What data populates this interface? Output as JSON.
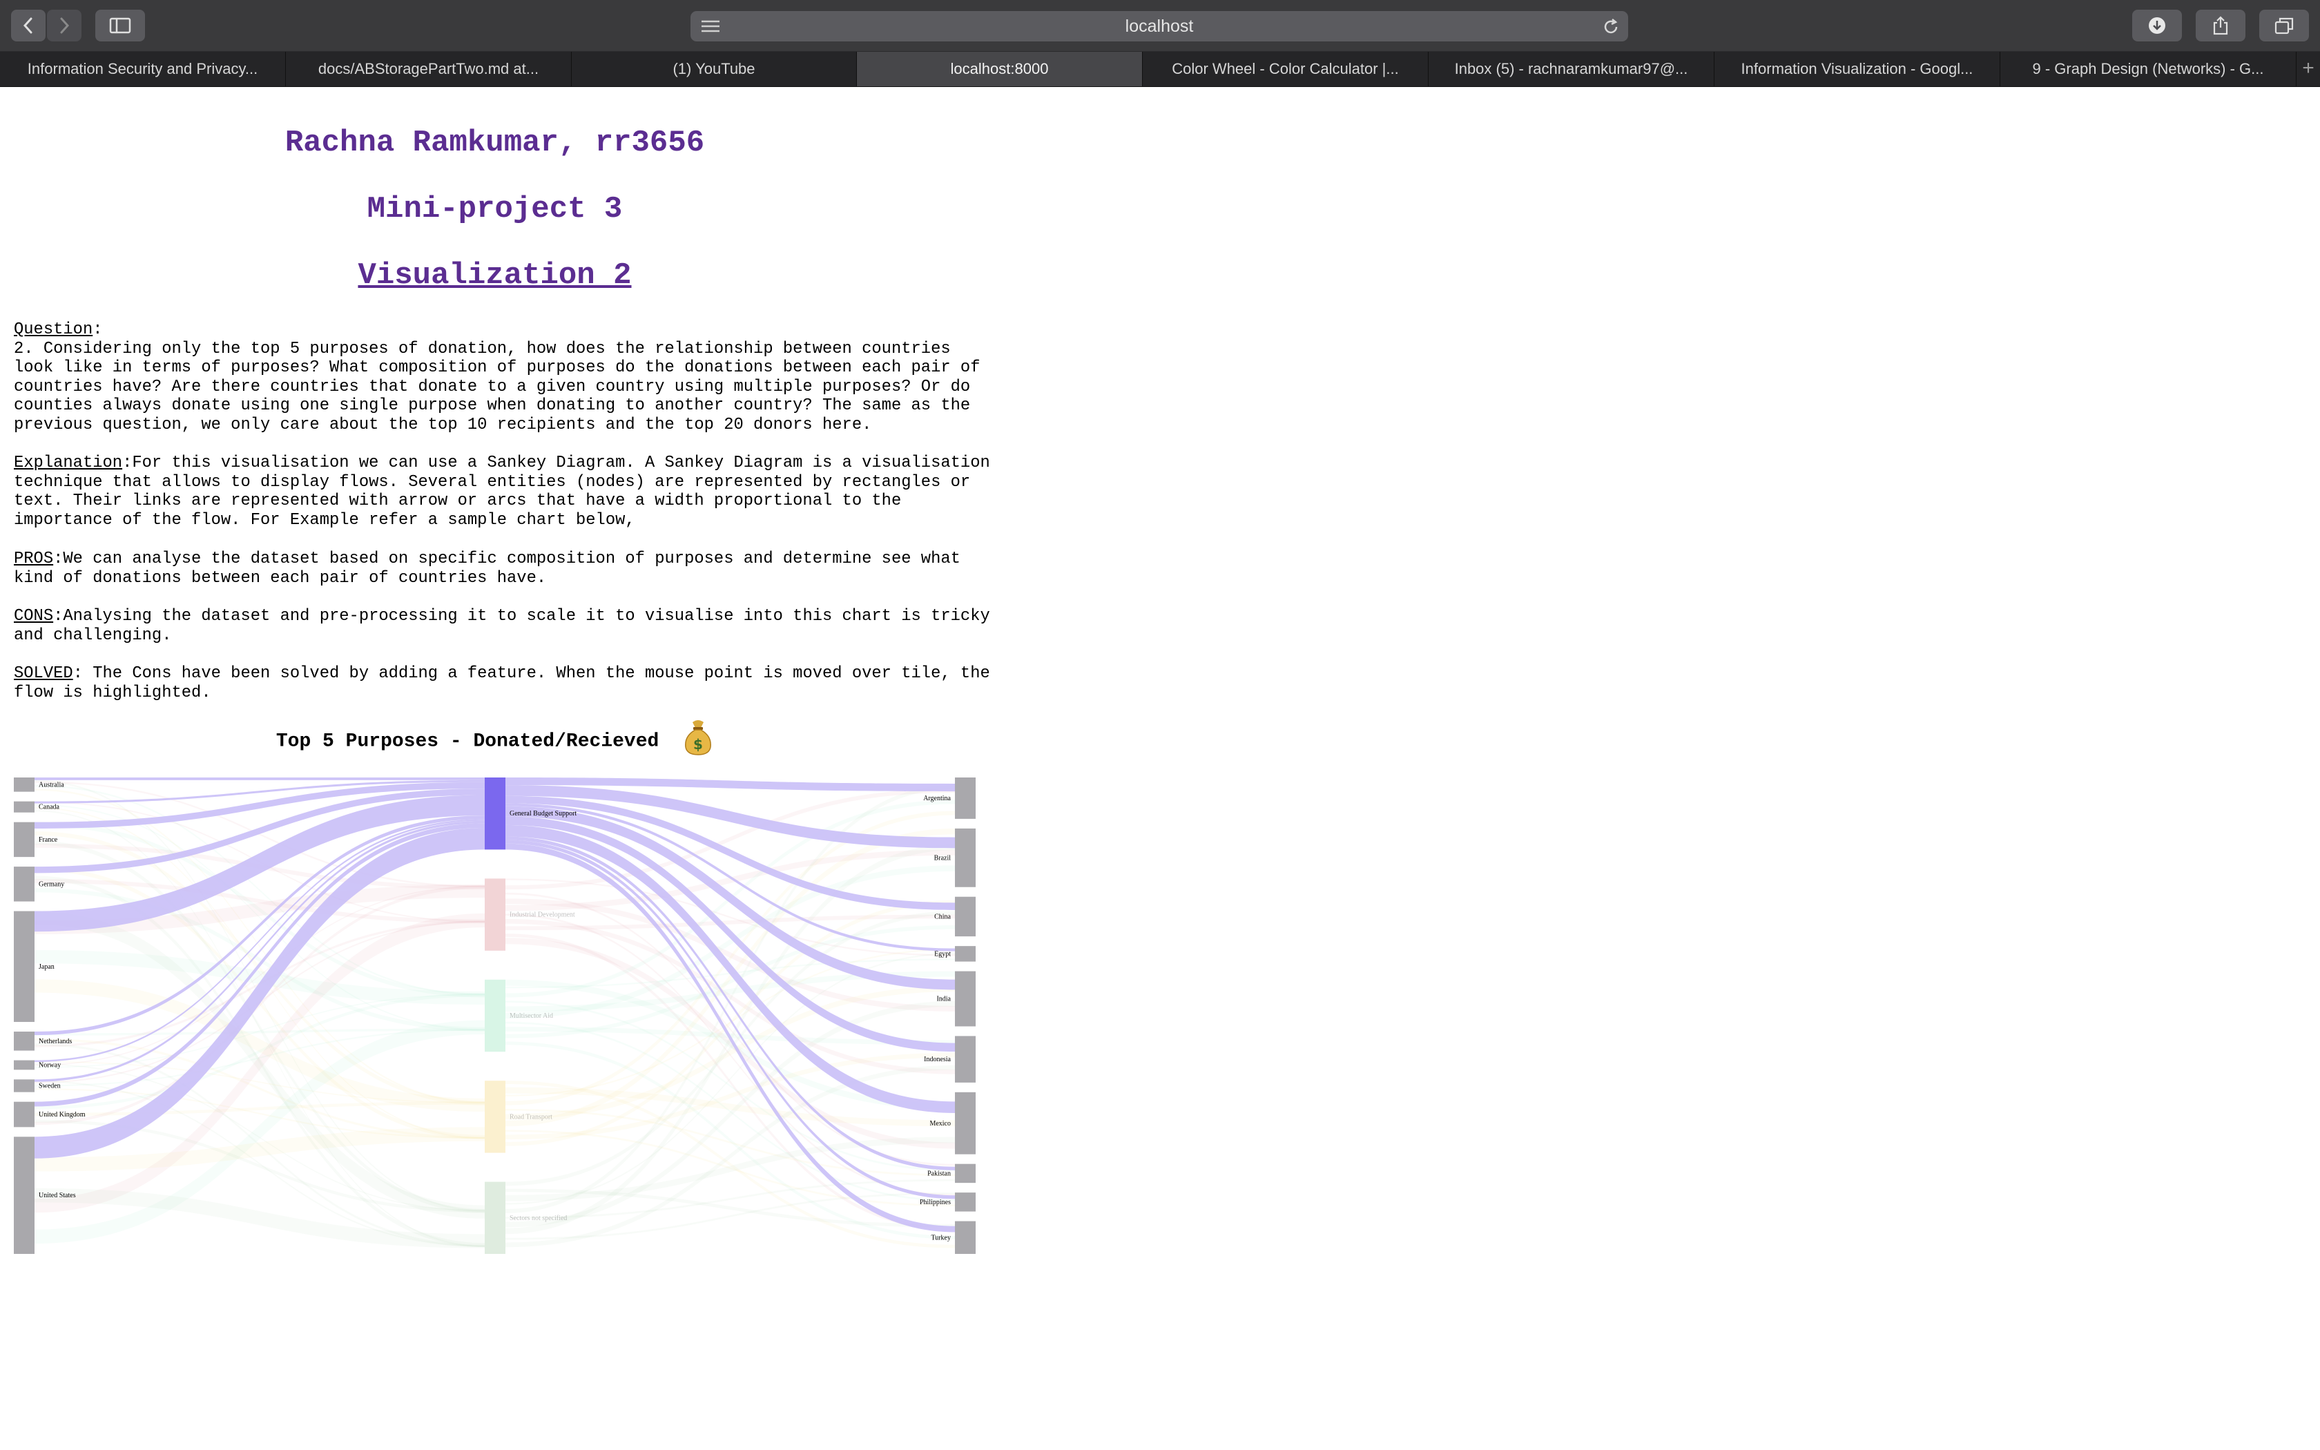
{
  "browser": {
    "address": "localhost",
    "tabs": [
      "Information Security and Privacy...",
      "docs/ABStoragePartTwo.md at...",
      "(1) YouTube",
      "localhost:8000",
      "Color Wheel - Color Calculator |...",
      "Inbox (5) - rachnaramkumar97@...",
      "Information Visualization - Googl...",
      "9 - Graph Design (Networks) - G..."
    ],
    "active_tab": 3,
    "add_tab": "+"
  },
  "page": {
    "author": "Rachna Ramkumar, rr3656",
    "project": "Mini-project 3",
    "viz_title": "Visualization 2",
    "question_label": "Question",
    "question_text": "2. Considering only the top 5 purposes of donation, how does the relationship between countries look like in terms of purposes? What composition of purposes do the donations between each pair of countries have? Are there countries that donate to a given country using multiple purposes? Or do counties always donate using one single purpose when donating to another country? The same as the previous question, we only care about the top 10 recipients and the top 20 donors here.",
    "explanation_label": "Explanation",
    "explanation_text": "For this visualisation we can use a Sankey Diagram. A Sankey Diagram is a visualisation technique that allows to display flows. Several entities (nodes) are represented by rectangles or text. Their links are represented with arrow or arcs that have a width proportional to the importance of the flow. For Example refer a sample chart below,",
    "pros_label": "PROS",
    "pros_text": "We can analyse the dataset based on specific composition of purposes and determine see what kind of donations between each pair of countries have.",
    "cons_label": "CONS",
    "cons_text": "Analysing the dataset and pre-processing it to scale it to visualise into this chart is tricky and challenging.",
    "solved_label": "SOLVED",
    "solved_text": " The Cons have been solved by adding a feature. When the mouse point is moved over tile, the flow is highlighted.",
    "chart_title": "Top 5 Purposes - Donated/Recieved",
    "chart_icon": "money-bag-icon"
  },
  "chart_data": {
    "type": "sankey",
    "title": "Top 5 Purposes - Donated/Recieved",
    "highlighted_purpose": "General Budget Support",
    "donors": [
      {
        "name": "Australia",
        "value": 0.9
      },
      {
        "name": "Canada",
        "value": 0.7
      },
      {
        "name": "France",
        "value": 2.2
      },
      {
        "name": "Germany",
        "value": 2.2
      },
      {
        "name": "Japan",
        "value": 7.0
      },
      {
        "name": "Netherlands",
        "value": 1.2
      },
      {
        "name": "Norway",
        "value": 0.6
      },
      {
        "name": "Sweden",
        "value": 0.8
      },
      {
        "name": "United Kingdom",
        "value": 1.6
      },
      {
        "name": "United States",
        "value": 7.4
      }
    ],
    "purposes": [
      {
        "name": "General Budget Support",
        "value": 5.0,
        "color": "#7b68ee"
      },
      {
        "name": "Industrial Development",
        "value": 5.0,
        "color": "#e8b0b4"
      },
      {
        "name": "Multisector Aid",
        "value": 5.0,
        "color": "#b8ecd2"
      },
      {
        "name": "Road Transport",
        "value": 5.0,
        "color": "#f7e3a8"
      },
      {
        "name": "Sectors not specified",
        "value": 5.0,
        "color": "#c4dcc4"
      }
    ],
    "recipients": [
      {
        "name": "Argentina",
        "value": 2.4
      },
      {
        "name": "Brazil",
        "value": 3.4
      },
      {
        "name": "China",
        "value": 2.3
      },
      {
        "name": "Egypt",
        "value": 0.9
      },
      {
        "name": "India",
        "value": 3.2
      },
      {
        "name": "Indonesia",
        "value": 2.7
      },
      {
        "name": "Mexico",
        "value": 3.6
      },
      {
        "name": "Pakistan",
        "value": 1.1
      },
      {
        "name": "Philippines",
        "value": 1.1
      },
      {
        "name": "Turkey",
        "value": 1.9
      }
    ],
    "colors": {
      "node": "#a9a8ac",
      "highlight_link": "#c5bbf7",
      "faint_link": "#f1f0ea"
    }
  }
}
